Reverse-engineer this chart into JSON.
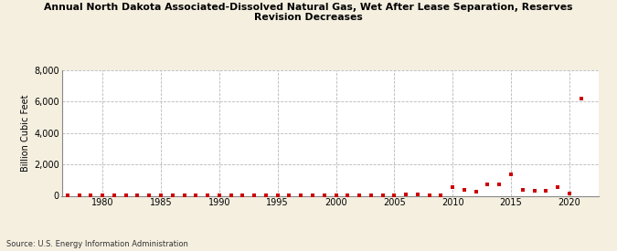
{
  "title": "Annual North Dakota Associated-Dissolved Natural Gas, Wet After Lease Separation, Reserves\nRevision Decreases",
  "ylabel": "Billion Cubic Feet",
  "source": "Source: U.S. Energy Information Administration",
  "background_color": "#f5efe0",
  "plot_background_color": "#ffffff",
  "marker_color": "#cc0000",
  "grid_color": "#b0b0b0",
  "xlim": [
    1976.5,
    2022.5
  ],
  "ylim": [
    0,
    8000
  ],
  "yticks": [
    0,
    2000,
    4000,
    6000,
    8000
  ],
  "xticks": [
    1980,
    1985,
    1990,
    1995,
    2000,
    2005,
    2010,
    2015,
    2020
  ],
  "years": [
    1977,
    1978,
    1979,
    1980,
    1981,
    1982,
    1983,
    1984,
    1985,
    1986,
    1987,
    1988,
    1989,
    1990,
    1991,
    1992,
    1993,
    1994,
    1995,
    1996,
    1997,
    1998,
    1999,
    2000,
    2001,
    2002,
    2003,
    2004,
    2005,
    2006,
    2007,
    2008,
    2009,
    2010,
    2011,
    2012,
    2013,
    2014,
    2015,
    2016,
    2017,
    2018,
    2019,
    2020,
    2021
  ],
  "values": [
    5,
    5,
    8,
    12,
    10,
    15,
    10,
    50,
    30,
    8,
    30,
    30,
    15,
    30,
    8,
    40,
    20,
    20,
    15,
    20,
    20,
    10,
    10,
    15,
    10,
    10,
    15,
    30,
    50,
    80,
    100,
    50,
    30,
    550,
    380,
    280,
    700,
    750,
    1350,
    380,
    330,
    300,
    550,
    120,
    6200
  ]
}
